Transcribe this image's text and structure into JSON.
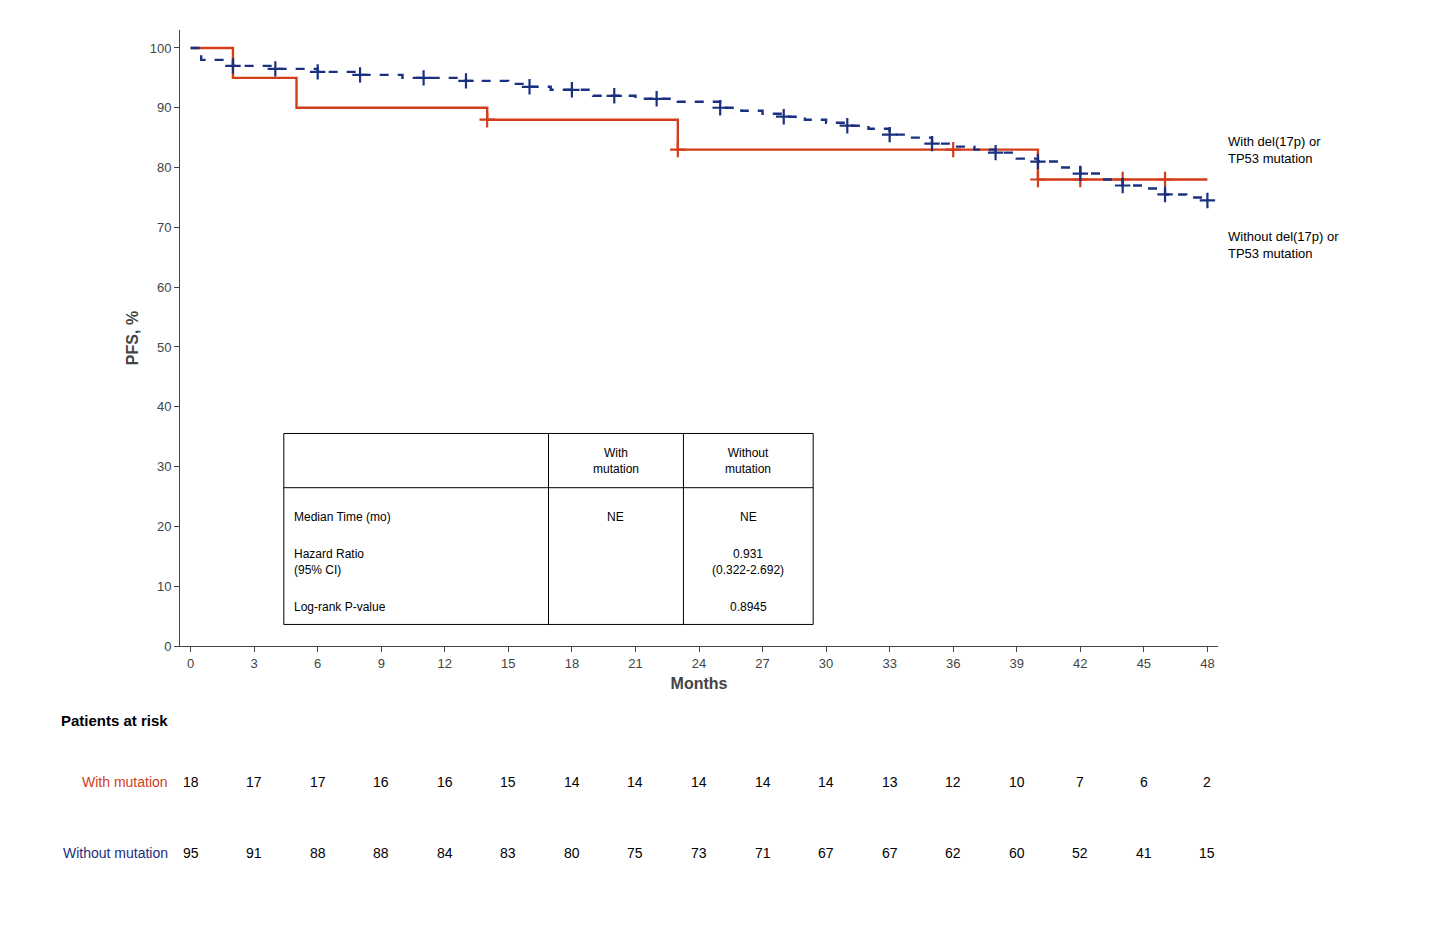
{
  "chart_data": {
    "type": "line",
    "xlabel": "Months",
    "ylabel": "PFS, %",
    "xlim": [
      -0.5,
      48.5
    ],
    "ylim": [
      0,
      103
    ],
    "xticks": [
      0,
      3,
      6,
      9,
      12,
      15,
      18,
      21,
      24,
      27,
      30,
      33,
      36,
      39,
      42,
      45,
      48
    ],
    "yticks": [
      0,
      10,
      20,
      30,
      40,
      50,
      60,
      70,
      80,
      90,
      100
    ],
    "grid": false,
    "series": [
      {
        "name": "With mutation",
        "color": "#D43D1A",
        "line_style": "solid",
        "marker": "plus",
        "x": [
          0,
          1.5,
          2,
          4,
          5,
          5.5,
          13,
          14,
          22,
          23,
          35,
          36,
          37,
          38,
          39,
          40,
          41,
          42,
          43,
          44,
          45,
          46,
          47,
          48
        ],
        "values": [
          100,
          100,
          95,
          95,
          90,
          90,
          90,
          88,
          88,
          83,
          83,
          83,
          83,
          83,
          83,
          78,
          78,
          78,
          78,
          78,
          78,
          78,
          78,
          78
        ],
        "censor_x": [
          14,
          23,
          36,
          40,
          42,
          44,
          46
        ],
        "censor_y": [
          88,
          83,
          83,
          78,
          78,
          78,
          78
        ],
        "at_risk": [
          18,
          17,
          17,
          16,
          16,
          15,
          14,
          14,
          14,
          14,
          14,
          13,
          12,
          10,
          7,
          6,
          2
        ]
      },
      {
        "name": "Without mutation",
        "color": "#1A3080",
        "line_style": "dashed",
        "marker": "plus",
        "x": [
          0,
          0.5,
          1,
          2,
          3,
          4,
          5,
          6,
          7,
          8,
          9,
          10,
          11,
          12,
          13,
          14,
          15,
          16,
          17,
          18,
          19,
          20,
          21,
          22,
          23,
          24,
          25,
          26,
          27,
          28,
          29,
          30,
          31,
          32,
          33,
          34,
          35,
          36,
          37,
          38,
          39,
          40,
          41,
          42,
          43,
          44,
          45,
          46,
          47,
          48
        ],
        "values": [
          100,
          98,
          98,
          97,
          97,
          96.5,
          96.5,
          96,
          96,
          95.5,
          95.5,
          95,
          95,
          95,
          94.5,
          94.5,
          94,
          93.5,
          93,
          93,
          92,
          92,
          91.5,
          91.5,
          91,
          91,
          90,
          89.5,
          89,
          88.5,
          88,
          87.5,
          87,
          86.5,
          85.5,
          85,
          84,
          83.5,
          83,
          82.5,
          81.5,
          81,
          80,
          79,
          78,
          77,
          76.5,
          75.5,
          75,
          74.5
        ],
        "censor_x": [
          2,
          4,
          6,
          8,
          11,
          13,
          16,
          18,
          20,
          22,
          25,
          28,
          31,
          33,
          35,
          38,
          40,
          42,
          44,
          46,
          48
        ],
        "censor_y": [
          97,
          96.5,
          96,
          95.5,
          95,
          94.5,
          93.5,
          93,
          92,
          91.5,
          90,
          88.5,
          87,
          85.5,
          84,
          82.5,
          81,
          79,
          77,
          75.5,
          74.5
        ],
        "at_risk": [
          95,
          91,
          88,
          88,
          84,
          83,
          80,
          75,
          73,
          71,
          67,
          67,
          62,
          60,
          52,
          41,
          15
        ]
      }
    ],
    "annotations": [
      {
        "text": "With del(17p) or\nTP53 mutation",
        "x": 48.5,
        "y": 83
      },
      {
        "text": "Without del(17p) or\nTP53 mutation",
        "x": 48.5,
        "y": 67
      }
    ],
    "table": {
      "header": [
        null,
        "With\nmutation",
        "Without\nmutation"
      ],
      "rows": [
        [
          "Median Time (mo)",
          "NE",
          "NE"
        ],
        [
          "Hazard Ratio\n(95% CI)",
          null,
          "0.931\n(0.322-2.692)"
        ],
        [
          "Log-rank P-value",
          null,
          "0.8945"
        ]
      ]
    },
    "at_risk_title": "Patients at risk",
    "at_risk_x": [
      0,
      3,
      6,
      9,
      12,
      15,
      18,
      21,
      24,
      27,
      30,
      33,
      36,
      39,
      42,
      45,
      48
    ]
  }
}
